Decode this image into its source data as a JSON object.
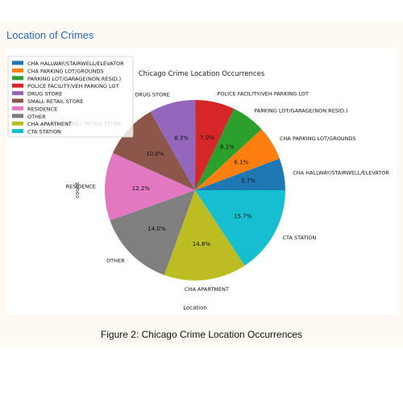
{
  "page": {
    "section_title": "Location of Crimes",
    "caption": "Figure 2: Chicago Crime Location Occurrences"
  },
  "chart_data": {
    "type": "pie",
    "title": "Chicago Crime Location Occurrences",
    "xlabel": "Location",
    "ylabel": "count",
    "legend_placement": "top-left",
    "slices": [
      {
        "label": "CHA HALLWAY/STAIRWELL/ELEVATOR",
        "value": 5.7,
        "pct": "5.7%",
        "color": "#1f77b4"
      },
      {
        "label": "CHA PARKING LOT/GROUNDS",
        "value": 6.1,
        "pct": "6.1%",
        "color": "#ff7f0e"
      },
      {
        "label": "PARKING LOT/GARAGE(NON.RESID.)",
        "value": 6.1,
        "pct": "6.1%",
        "color": "#2ca02c"
      },
      {
        "label": "POLICE FACILITY/VEH PARKING LOT",
        "value": 7.0,
        "pct": "7.0%",
        "color": "#d62728"
      },
      {
        "label": "DRUG STORE",
        "value": 8.3,
        "pct": "8.3%",
        "color": "#9467bd"
      },
      {
        "label": "SMALL RETAIL STORE",
        "value": 10.0,
        "pct": "10.0%",
        "color": "#8c564b"
      },
      {
        "label": "RESIDENCE",
        "value": 12.2,
        "pct": "12.2%",
        "color": "#e377c2"
      },
      {
        "label": "OTHER",
        "value": 14.0,
        "pct": "14.0%",
        "color": "#7f7f7f"
      },
      {
        "label": "CHA APARTMENT",
        "value": 14.8,
        "pct": "14.8%",
        "color": "#bcbd22"
      },
      {
        "label": "CTA STATION",
        "value": 15.7,
        "pct": "15.7%",
        "color": "#17becf"
      }
    ]
  }
}
